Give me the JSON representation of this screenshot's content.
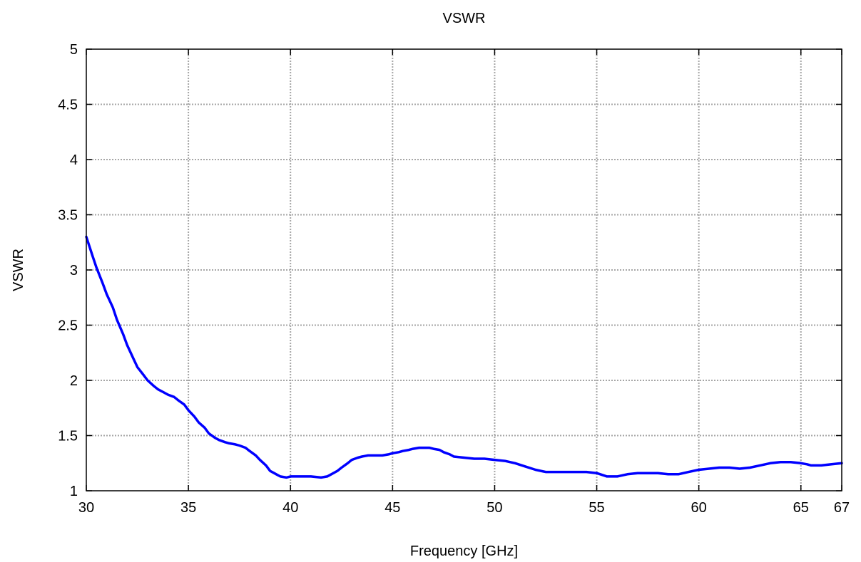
{
  "chart_data": {
    "type": "line",
    "title": "VSWR",
    "xlabel": "Frequency [GHz]",
    "ylabel": "VSWR",
    "xlim": [
      30,
      67
    ],
    "ylim": [
      1,
      5
    ],
    "xticks": [
      30,
      35,
      40,
      45,
      50,
      55,
      60,
      65,
      67
    ],
    "yticks": [
      1,
      1.5,
      2,
      2.5,
      3,
      3.5,
      4,
      4.5,
      5
    ],
    "ytick_labels": [
      "1",
      "1.5",
      "2",
      "2.5",
      "3",
      "3.5",
      "4",
      "4.5",
      "5"
    ],
    "grid": true,
    "series": [
      {
        "color": "#0000ff",
        "x": [
          30,
          30.3,
          30.5,
          30.8,
          31.0,
          31.3,
          31.5,
          31.8,
          32.0,
          32.3,
          32.5,
          32.8,
          33.0,
          33.3,
          33.5,
          33.8,
          34.0,
          34.3,
          34.5,
          34.8,
          35.0,
          35.3,
          35.5,
          35.8,
          36.0,
          36.3,
          36.5,
          36.8,
          37.0,
          37.3,
          37.5,
          37.8,
          38.0,
          38.3,
          38.5,
          38.8,
          39.0,
          39.3,
          39.5,
          39.8,
          40.0,
          40.5,
          41.0,
          41.5,
          41.8,
          42.0,
          42.3,
          42.5,
          42.8,
          43.0,
          43.3,
          43.5,
          43.8,
          44.0,
          44.3,
          44.5,
          44.8,
          45.0,
          45.3,
          45.5,
          45.8,
          46.0,
          46.3,
          46.5,
          46.8,
          47.0,
          47.3,
          47.5,
          47.8,
          48.0,
          48.5,
          49.0,
          49.5,
          50.0,
          50.5,
          51.0,
          51.5,
          52.0,
          52.5,
          53.0,
          53.5,
          54.0,
          54.5,
          55.0,
          55.5,
          55.8,
          56.0,
          56.5,
          57.0,
          57.5,
          58.0,
          58.5,
          59.0,
          59.5,
          60.0,
          60.5,
          61.0,
          61.5,
          62.0,
          62.5,
          63.0,
          63.5,
          64.0,
          64.5,
          65.0,
          65.3,
          65.5,
          66.0,
          66.5,
          67.0
        ],
        "y": [
          3.3,
          3.13,
          3.02,
          2.88,
          2.78,
          2.66,
          2.55,
          2.42,
          2.32,
          2.2,
          2.12,
          2.05,
          2.0,
          1.95,
          1.92,
          1.89,
          1.87,
          1.85,
          1.82,
          1.78,
          1.73,
          1.67,
          1.62,
          1.57,
          1.52,
          1.48,
          1.46,
          1.44,
          1.43,
          1.42,
          1.41,
          1.39,
          1.36,
          1.32,
          1.28,
          1.23,
          1.18,
          1.15,
          1.13,
          1.12,
          1.13,
          1.13,
          1.13,
          1.12,
          1.13,
          1.15,
          1.18,
          1.21,
          1.25,
          1.28,
          1.3,
          1.31,
          1.32,
          1.32,
          1.32,
          1.32,
          1.33,
          1.34,
          1.35,
          1.36,
          1.37,
          1.38,
          1.39,
          1.39,
          1.39,
          1.38,
          1.37,
          1.35,
          1.33,
          1.31,
          1.3,
          1.29,
          1.29,
          1.28,
          1.27,
          1.25,
          1.22,
          1.19,
          1.17,
          1.17,
          1.17,
          1.17,
          1.17,
          1.16,
          1.13,
          1.13,
          1.13,
          1.15,
          1.16,
          1.16,
          1.16,
          1.15,
          1.15,
          1.17,
          1.19,
          1.2,
          1.21,
          1.21,
          1.2,
          1.21,
          1.23,
          1.25,
          1.26,
          1.26,
          1.25,
          1.24,
          1.23,
          1.23,
          1.24,
          1.25
        ]
      }
    ]
  }
}
